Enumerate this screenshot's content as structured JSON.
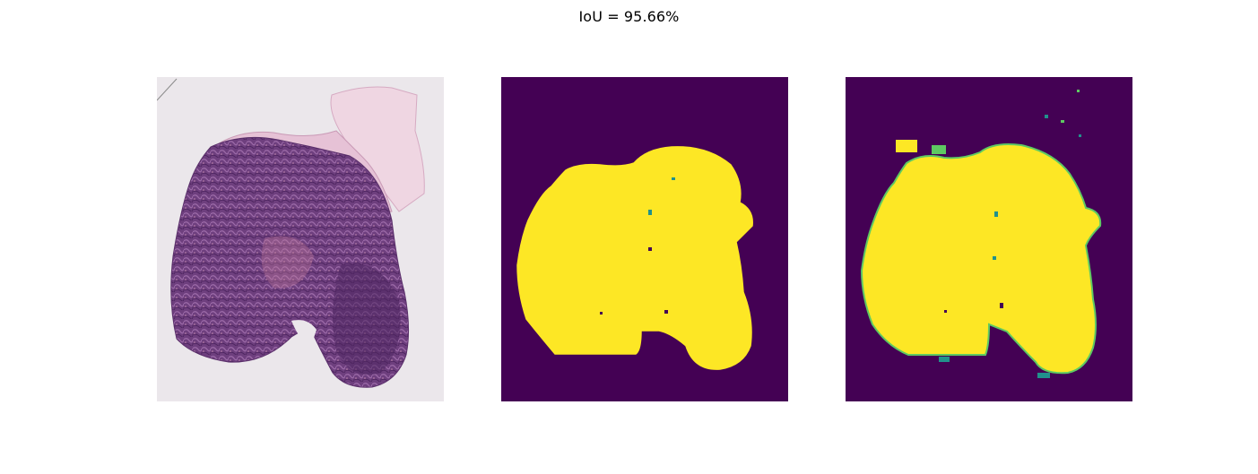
{
  "figure": {
    "title": "IoU = 95.66%"
  },
  "panels": [
    {
      "kind": "tissue-image"
    },
    {
      "kind": "mask",
      "background_color": "#440154",
      "foreground_color": "#fde725"
    },
    {
      "kind": "mask",
      "background_color": "#440154",
      "foreground_color": "#fde725",
      "edge_colors": [
        "#21918c",
        "#5ec962"
      ]
    }
  ],
  "colors": {
    "background": "#ffffff",
    "mask_background": "#440154",
    "mask_foreground": "#fde725",
    "tissue": "#7a4a86",
    "tissue_dark": "#5a2f6a",
    "tissue_pink": "#c98aa6",
    "slide": "#ece8ec"
  }
}
